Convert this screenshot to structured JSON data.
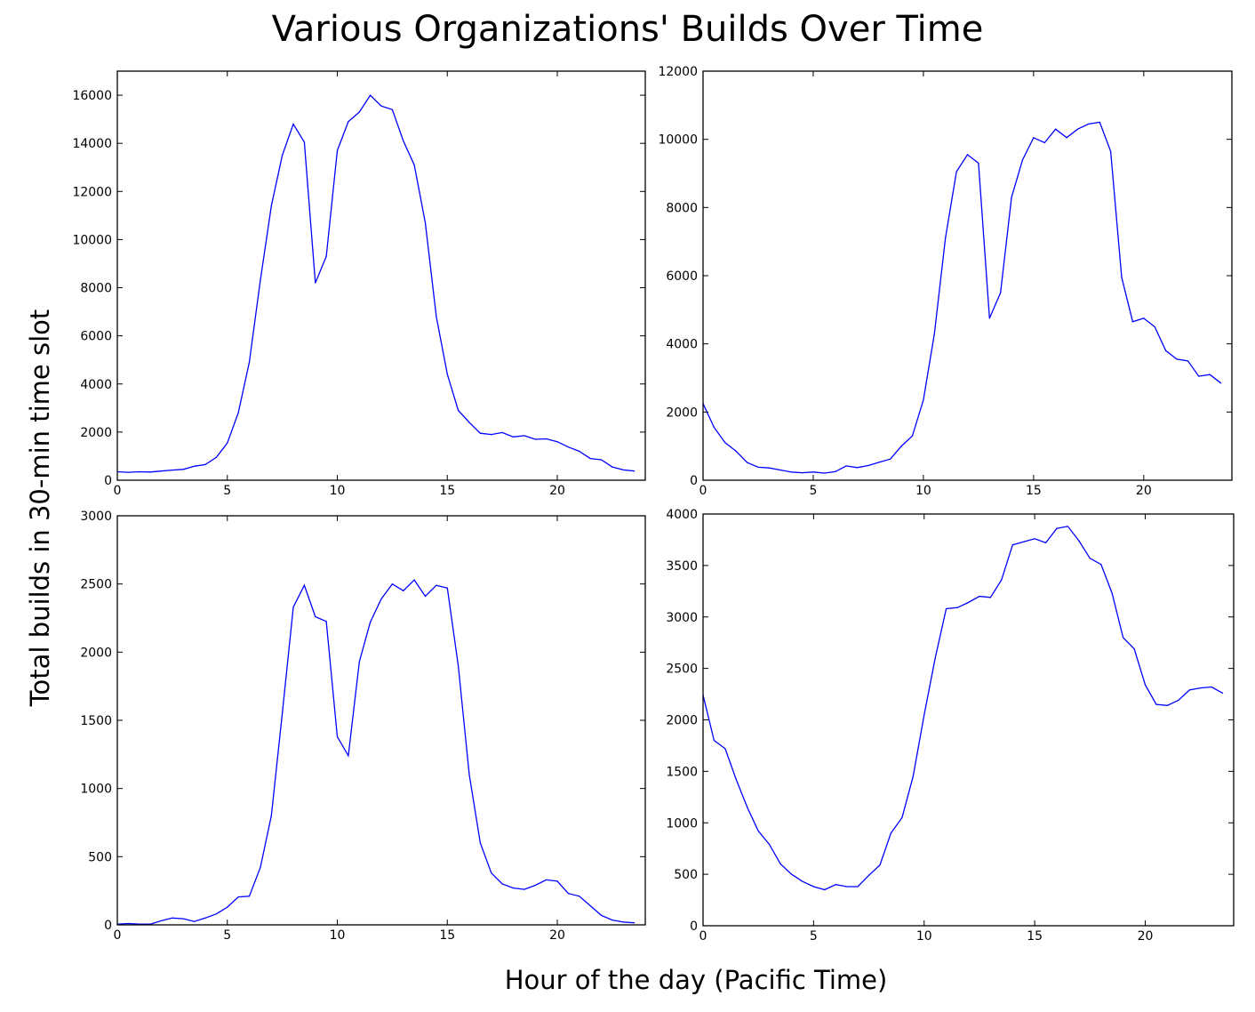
{
  "figure": {
    "title": "Various Organizations' Builds Over Time",
    "xlabel": "Hour of the day (Pacific Time)",
    "ylabel": "Total builds in 30-min time slot",
    "line_color": "#0000ff"
  },
  "chart_data": [
    {
      "type": "line",
      "position": "top-left",
      "xlim": [
        0,
        24
      ],
      "ylim": [
        0,
        17000
      ],
      "xticks": [
        0,
        5,
        10,
        15,
        20
      ],
      "yticks": [
        0,
        2000,
        4000,
        6000,
        8000,
        10000,
        12000,
        14000,
        16000
      ],
      "x": [
        0,
        0.5,
        1,
        1.5,
        2,
        2.5,
        3,
        3.5,
        4,
        4.5,
        5,
        5.5,
        6,
        6.5,
        7,
        7.5,
        8,
        8.5,
        9,
        9.5,
        10,
        10.5,
        11,
        11.5,
        12,
        12.5,
        13,
        13.5,
        14,
        14.5,
        15,
        15.5,
        16,
        16.5,
        17,
        17.5,
        18,
        18.5,
        19,
        19.5,
        20,
        20.5,
        21,
        21.5,
        22,
        22.5,
        23,
        23.5
      ],
      "y": [
        350,
        330,
        350,
        340,
        380,
        420,
        450,
        580,
        650,
        950,
        1550,
        2800,
        4900,
        8300,
        11400,
        13500,
        14800,
        14050,
        8200,
        9300,
        13700,
        14900,
        15300,
        16000,
        15550,
        15400,
        14100,
        13100,
        10700,
        6800,
        4400,
        2900,
        2400,
        1950,
        1900,
        1980,
        1800,
        1850,
        1700,
        1720,
        1600,
        1380,
        1200,
        900,
        850,
        550,
        430,
        380
      ]
    },
    {
      "type": "line",
      "position": "top-right",
      "xlim": [
        0,
        24
      ],
      "ylim": [
        0,
        12000
      ],
      "xticks": [
        0,
        5,
        10,
        15,
        20
      ],
      "yticks": [
        0,
        2000,
        4000,
        6000,
        8000,
        10000,
        12000
      ],
      "x": [
        0,
        0.5,
        1,
        1.5,
        2,
        2.5,
        3,
        3.5,
        4,
        4.5,
        5,
        5.5,
        6,
        6.5,
        7,
        7.5,
        8,
        8.5,
        9,
        9.5,
        10,
        10.5,
        11,
        11.5,
        12,
        12.5,
        13,
        13.5,
        14,
        14.5,
        15,
        15.5,
        16,
        16.5,
        17,
        17.5,
        18,
        18.5,
        19,
        19.5,
        20,
        20.5,
        21,
        21.5,
        22,
        22.5,
        23,
        23.5
      ],
      "y": [
        2250,
        1550,
        1100,
        850,
        520,
        380,
        360,
        300,
        240,
        220,
        240,
        210,
        250,
        420,
        370,
        430,
        530,
        620,
        1000,
        1300,
        2350,
        4300,
        7100,
        9050,
        9550,
        9300,
        4750,
        5500,
        8300,
        9400,
        10050,
        9900,
        10300,
        10050,
        10300,
        10450,
        10500,
        9650,
        5950,
        4650,
        4750,
        4500,
        3800,
        3550,
        3500,
        3050,
        3100,
        2850
      ]
    },
    {
      "type": "line",
      "position": "bottom-left",
      "xlim": [
        0,
        24
      ],
      "ylim": [
        0,
        3000
      ],
      "xticks": [
        0,
        5,
        10,
        15,
        20
      ],
      "yticks": [
        0,
        500,
        1000,
        1500,
        2000,
        2500,
        3000
      ],
      "x": [
        0,
        0.5,
        1,
        1.5,
        2,
        2.5,
        3,
        3.5,
        4,
        4.5,
        5,
        5.5,
        6,
        6.5,
        7,
        7.5,
        8,
        8.5,
        9,
        9.5,
        10,
        10.5,
        11,
        11.5,
        12,
        12.5,
        13,
        13.5,
        14,
        14.5,
        15,
        15.5,
        16,
        16.5,
        17,
        17.5,
        18,
        18.5,
        19,
        19.5,
        20,
        20.5,
        21,
        21.5,
        22,
        22.5,
        23,
        23.5
      ],
      "y": [
        5,
        10,
        5,
        5,
        30,
        50,
        45,
        25,
        50,
        80,
        130,
        205,
        210,
        420,
        800,
        1550,
        2330,
        2490,
        2260,
        2225,
        1380,
        1240,
        1930,
        2220,
        2390,
        2500,
        2450,
        2530,
        2410,
        2490,
        2470,
        1900,
        1100,
        600,
        380,
        300,
        270,
        260,
        290,
        330,
        320,
        230,
        210,
        140,
        70,
        35,
        20,
        15
      ]
    },
    {
      "type": "line",
      "position": "bottom-right",
      "xlim": [
        0,
        24
      ],
      "ylim": [
        0,
        4000
      ],
      "xticks": [
        0,
        5,
        10,
        15,
        20
      ],
      "yticks": [
        0,
        500,
        1000,
        1500,
        2000,
        2500,
        3000,
        3500,
        4000
      ],
      "x": [
        0,
        0.5,
        1,
        1.5,
        2,
        2.5,
        3,
        3.5,
        4,
        4.5,
        5,
        5.5,
        6,
        6.5,
        7,
        7.5,
        8,
        8.5,
        9,
        9.5,
        10,
        10.5,
        11,
        11.5,
        12,
        12.5,
        13,
        13.5,
        14,
        14.5,
        15,
        15.5,
        16,
        16.5,
        17,
        17.5,
        18,
        18.5,
        19,
        19.5,
        20,
        20.5,
        21,
        21.5,
        22,
        22.5,
        23,
        23.5
      ],
      "y": [
        2240,
        1800,
        1720,
        1420,
        1150,
        920,
        790,
        600,
        500,
        430,
        380,
        350,
        400,
        380,
        380,
        490,
        590,
        900,
        1050,
        1450,
        2050,
        2600,
        3080,
        3090,
        3140,
        3200,
        3190,
        3360,
        3700,
        3730,
        3760,
        3720,
        3860,
        3880,
        3740,
        3570,
        3510,
        3230,
        2800,
        2690,
        2340,
        2150,
        2140,
        2190,
        2290,
        2310,
        2320,
        2260
      ]
    }
  ]
}
